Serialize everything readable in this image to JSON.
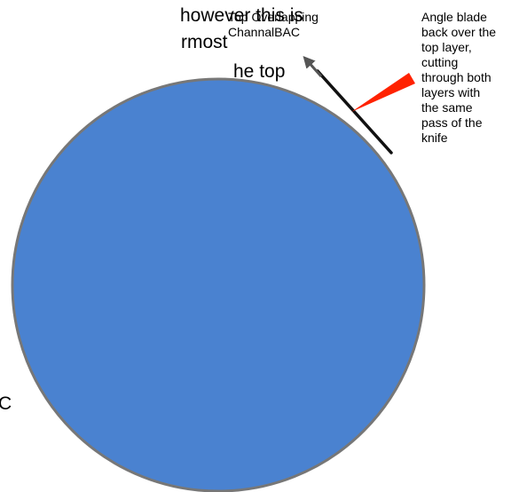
{
  "cropped_text": {
    "line1": "however this is",
    "line2": "rmost",
    "line3": "he top",
    "line4": "C"
  },
  "labels": {
    "top_overlapping": "Top Overlapping\nChannalBAC",
    "angle_blade": "Angle blade\nback over the\ntop layer,\ncutting\nthrough both\nlayers with\nthe same\npass of the\nknife"
  },
  "colors": {
    "circle_fill": "#4A82D0",
    "circle_stroke": "#777777",
    "blade": "#FF2200",
    "layer_line": "#111111",
    "arrow": "#555555"
  }
}
